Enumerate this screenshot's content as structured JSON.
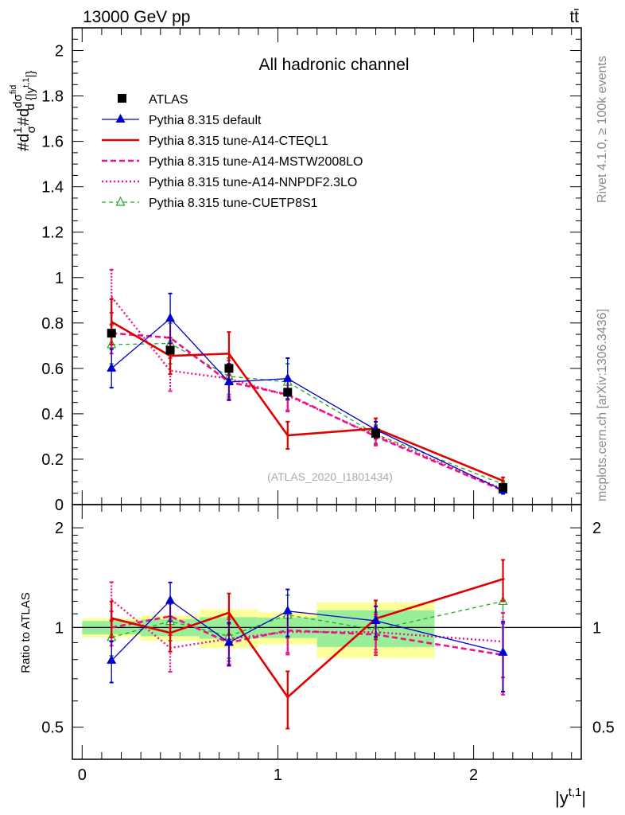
{
  "header": {
    "energy_label": "13000 GeV pp",
    "process_label": "tt̄",
    "rivet_label": "Rivet 4.1.0, ≥ 100k events",
    "site_label": "mcplots.cern.ch [arXiv:1306.3436]"
  },
  "chart_data": {
    "type": "line",
    "title": "All hadronic channel",
    "analysis_label": "(ATLAS_2020_I1801434)",
    "xlabel": "|y^{t,1}|",
    "ylabel": "#d₁/σ #d dσ^{fid} / d {|y^{t,1}|}",
    "ratio_ylabel": "Ratio to ATLAS",
    "xlim": [
      -0.05,
      2.55
    ],
    "ylim": [
      0,
      2.1
    ],
    "ratio_ylim": [
      0.4,
      2.35
    ],
    "x_ticks": [
      "0",
      "1",
      "2"
    ],
    "y_ticks": [
      "0",
      "0.2",
      "0.4",
      "0.6",
      "0.8",
      "1",
      "1.2",
      "1.4",
      "1.6",
      "1.8",
      "2"
    ],
    "ratio_ticks": [
      "0.5",
      "1",
      "2"
    ],
    "bins": [
      [
        0.0,
        0.3
      ],
      [
        0.3,
        0.6
      ],
      [
        0.6,
        0.9
      ],
      [
        0.9,
        1.2
      ],
      [
        1.2,
        1.8
      ],
      [
        1.8,
        2.5
      ]
    ],
    "x": [
      0.15,
      0.45,
      0.75,
      1.05,
      1.5,
      2.15
    ],
    "data": {
      "name": "ATLAS",
      "values": [
        0.755,
        0.68,
        0.6,
        0.495,
        0.315,
        0.075
      ],
      "band_inner": [
        0.035,
        0.04,
        0.045,
        0.035,
        0.04,
        0.09
      ],
      "band_outer": [
        0.05,
        0.06,
        0.08,
        0.055,
        0.06,
        0.17
      ]
    },
    "series": [
      {
        "name": "Pythia 8.315 default",
        "color": "#0000cc",
        "style": "solid",
        "marker": "triangle",
        "values": [
          0.6,
          0.82,
          0.54,
          0.555,
          0.33,
          0.063
        ],
        "errors": [
          0.085,
          0.11,
          0.08,
          0.09,
          0.035,
          0.015
        ]
      },
      {
        "name": "Pythia 8.315 tune-A14-CTEQL1",
        "color": "#e00000",
        "style": "thick",
        "marker": "none",
        "values": [
          0.805,
          0.655,
          0.665,
          0.305,
          0.335,
          0.105
        ],
        "errors": [
          0.1,
          0.08,
          0.095,
          0.06,
          0.045,
          0.015
        ]
      },
      {
        "name": "Pythia 8.315 tune-A14-MSTW2008LO",
        "color": "#ee1188",
        "style": "dashed",
        "marker": "none",
        "values": [
          0.755,
          0.735,
          0.54,
          0.485,
          0.3,
          0.062
        ],
        "errors": [
          0.09,
          0.09,
          0.075,
          0.07,
          0.04,
          0.015
        ]
      },
      {
        "name": "Pythia 8.315 tune-A14-NNPDF2.3LO",
        "color": "#ee1188",
        "style": "dotted",
        "marker": "none",
        "values": [
          0.915,
          0.59,
          0.555,
          0.48,
          0.305,
          0.068
        ],
        "errors": [
          0.12,
          0.09,
          0.08,
          0.07,
          0.04,
          0.015
        ]
      },
      {
        "name": "Pythia 8.315 tune-CUETP8S1",
        "color": "#22aa22",
        "style": "dashed-thin",
        "marker": "open-triangle",
        "values": [
          0.705,
          0.71,
          0.565,
          0.54,
          0.31,
          0.09
        ],
        "errors": [
          0.085,
          0.09,
          0.08,
          0.08,
          0.04,
          0.015
        ]
      }
    ]
  }
}
